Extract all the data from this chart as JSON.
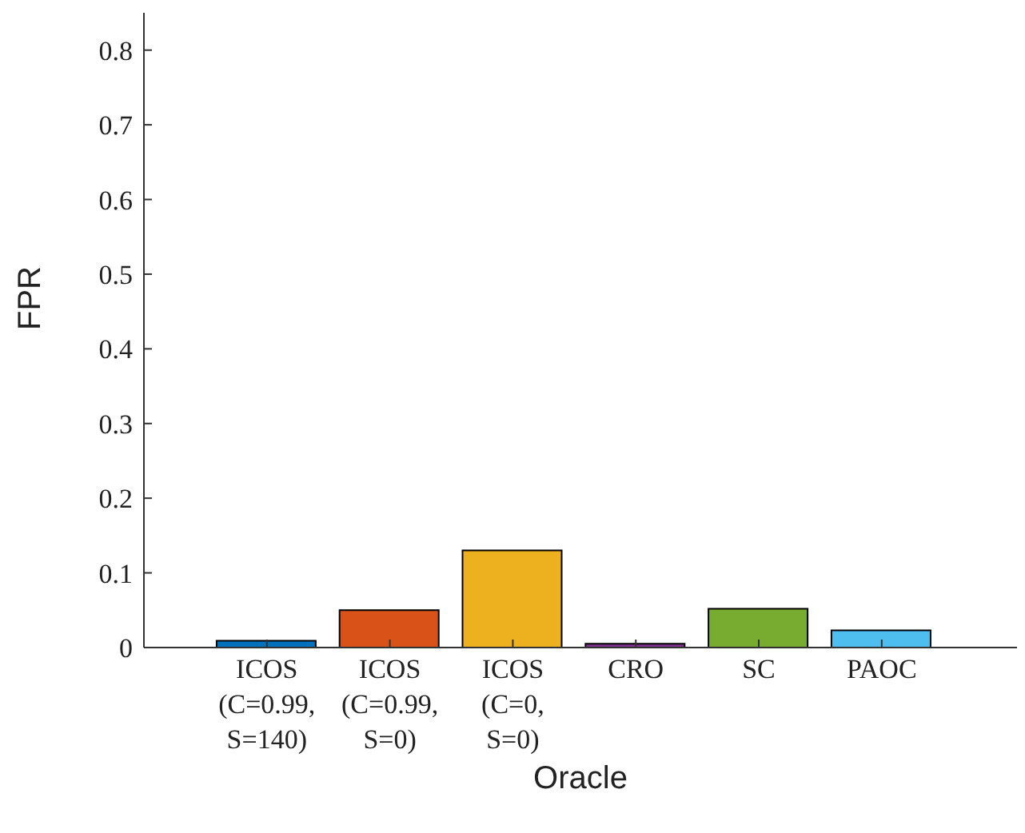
{
  "chart_data": {
    "type": "bar",
    "xlabel": "Oracle",
    "ylabel": "FPR",
    "categories": [
      "ICOS (C=0.99, S=140)",
      "ICOS (C=0.99, S=0)",
      "ICOS (C=0, S=0)",
      "CRO",
      "SC",
      "PAOC"
    ],
    "values": [
      0.009,
      0.05,
      0.13,
      0.005,
      0.052,
      0.023
    ],
    "colors": [
      "#0072bd",
      "#d95319",
      "#edb120",
      "#7e2f8e",
      "#77ac30",
      "#4dbeee"
    ],
    "ylim": [
      0,
      0.85
    ],
    "yticks": [
      0,
      0.1,
      0.2,
      0.3,
      0.4,
      0.5,
      0.6,
      0.7,
      0.8
    ],
    "grid": false
  }
}
